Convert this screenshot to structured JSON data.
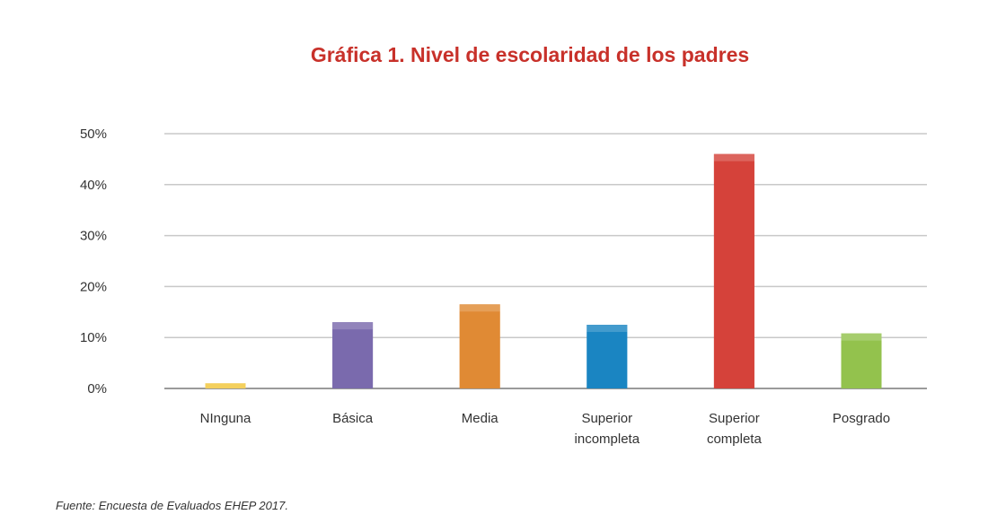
{
  "chart_data": {
    "type": "bar",
    "title": "Gráfica 1. Nivel de escolaridad de los padres",
    "categories": [
      "NInguna",
      "Básica",
      "Media",
      "Superior incompleta",
      "Superior completa",
      "Posgrado"
    ],
    "category_lines": [
      [
        "NInguna"
      ],
      [
        "Básica"
      ],
      [
        "Media"
      ],
      [
        "Superior",
        "incompleta"
      ],
      [
        "Superior",
        "completa"
      ],
      [
        "Posgrado"
      ]
    ],
    "values": [
      1,
      13,
      16.5,
      12.5,
      46,
      10.8
    ],
    "colors": [
      "#f2c63a",
      "#7a6aad",
      "#e08a34",
      "#1a85c2",
      "#d5423a",
      "#93c24d"
    ],
    "y_ticks": [
      0,
      10,
      20,
      30,
      40,
      50
    ],
    "y_tick_labels": [
      "0%",
      "10%",
      "20%",
      "30%",
      "40%",
      "50%"
    ],
    "ylim": [
      0,
      50
    ],
    "xlabel": "",
    "ylabel": "",
    "grid": true,
    "legend": "none"
  },
  "source_note": "Fuente: Encuesta de Evaluados EHEP 2017."
}
